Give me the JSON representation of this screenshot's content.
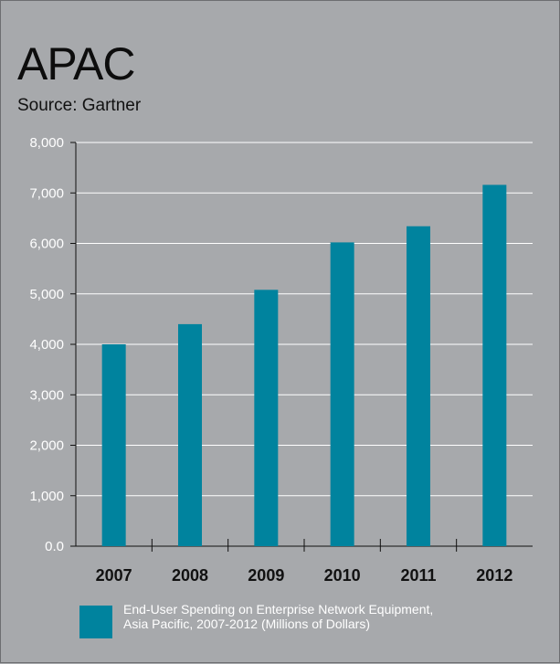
{
  "chart_data": {
    "type": "bar",
    "title": "APAC",
    "subtitle": "Source: Gartner",
    "categories": [
      "2007",
      "2008",
      "2009",
      "2010",
      "2011",
      "2012"
    ],
    "series": [
      {
        "name": "End-User Spending on Enterprise Network Equipment, Asia Pacific, 2007-2012 (Millions of Dollars)",
        "values": [
          4000,
          4400,
          5080,
          6020,
          6340,
          7160
        ]
      }
    ],
    "ylim": [
      0,
      8000
    ],
    "yticks": [
      0,
      1000,
      2000,
      3000,
      4000,
      5000,
      6000,
      7000,
      8000
    ],
    "ytick_labels": [
      "0.0",
      "1,000",
      "2,000",
      "3,000",
      "4,000",
      "5,000",
      "6,000",
      "7,000",
      "8,000"
    ],
    "grid": true,
    "legend_position": "bottom",
    "legend_lines": [
      "End-User Spending on Enterprise Network Equipment,",
      "Asia Pacific, 2007-2012 (Millions of Dollars)"
    ],
    "colors": {
      "bar": "#00839e",
      "background": "#a7a9ac",
      "grid": "#ffffff",
      "axis": "#111111"
    }
  }
}
